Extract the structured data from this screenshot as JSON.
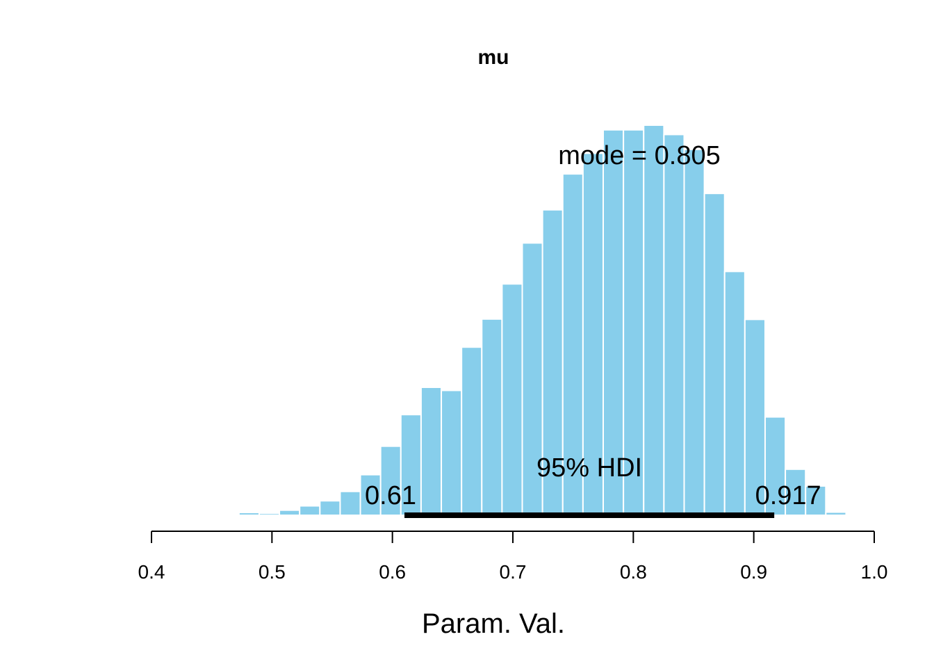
{
  "chart_data": {
    "type": "bar",
    "title": "mu",
    "xlabel": "Param. Val.",
    "ylabel": "",
    "xlim": [
      0.4,
      1.0
    ],
    "ylim": [
      0,
      1
    ],
    "grid": false,
    "bar_color": "#87CEEB",
    "bar_edge_color": "#ffffff",
    "hdi_color": "#000000",
    "bin_width": 0.0168,
    "bins": [
      {
        "x0": 0.4726,
        "x1": 0.4894,
        "value": 0.007
      },
      {
        "x0": 0.4894,
        "x1": 0.5062,
        "value": 0.005
      },
      {
        "x0": 0.5062,
        "x1": 0.523,
        "value": 0.013
      },
      {
        "x0": 0.523,
        "x1": 0.5398,
        "value": 0.024
      },
      {
        "x0": 0.5398,
        "x1": 0.5566,
        "value": 0.037
      },
      {
        "x0": 0.5566,
        "x1": 0.5734,
        "value": 0.061
      },
      {
        "x0": 0.5734,
        "x1": 0.5902,
        "value": 0.104
      },
      {
        "x0": 0.5902,
        "x1": 0.607,
        "value": 0.177
      },
      {
        "x0": 0.607,
        "x1": 0.6238,
        "value": 0.258
      },
      {
        "x0": 0.6238,
        "x1": 0.6406,
        "value": 0.328
      },
      {
        "x0": 0.6406,
        "x1": 0.6574,
        "value": 0.32
      },
      {
        "x0": 0.6574,
        "x1": 0.6742,
        "value": 0.431
      },
      {
        "x0": 0.6742,
        "x1": 0.691,
        "value": 0.503
      },
      {
        "x0": 0.691,
        "x1": 0.7078,
        "value": 0.593
      },
      {
        "x0": 0.7078,
        "x1": 0.7246,
        "value": 0.698
      },
      {
        "x0": 0.7246,
        "x1": 0.7414,
        "value": 0.783
      },
      {
        "x0": 0.7414,
        "x1": 0.7582,
        "value": 0.875
      },
      {
        "x0": 0.7582,
        "x1": 0.775,
        "value": 0.928
      },
      {
        "x0": 0.775,
        "x1": 0.7918,
        "value": 0.988
      },
      {
        "x0": 0.7918,
        "x1": 0.8086,
        "value": 0.988
      },
      {
        "x0": 0.8086,
        "x1": 0.8254,
        "value": 1.0
      },
      {
        "x0": 0.8254,
        "x1": 0.8422,
        "value": 0.976
      },
      {
        "x0": 0.8422,
        "x1": 0.859,
        "value": 0.938
      },
      {
        "x0": 0.859,
        "x1": 0.8758,
        "value": 0.825
      },
      {
        "x0": 0.8758,
        "x1": 0.8926,
        "value": 0.625
      },
      {
        "x0": 0.8926,
        "x1": 0.9094,
        "value": 0.502
      },
      {
        "x0": 0.9094,
        "x1": 0.9262,
        "value": 0.252
      },
      {
        "x0": 0.9262,
        "x1": 0.943,
        "value": 0.118
      },
      {
        "x0": 0.943,
        "x1": 0.9598,
        "value": 0.075
      },
      {
        "x0": 0.9598,
        "x1": 0.9766,
        "value": 0.008
      }
    ],
    "x_ticks": [
      0.4,
      0.5,
      0.6,
      0.7,
      0.8,
      0.9,
      1.0
    ],
    "x_tick_labels": [
      "0.4",
      "0.5",
      "0.6",
      "0.7",
      "0.8",
      "0.9",
      "1.0"
    ],
    "mode": 0.805,
    "mode_label": "mode = 0.805",
    "hdi": {
      "label": "95% HDI",
      "low": 0.61,
      "high": 0.917,
      "low_label": "0.61",
      "high_label": "0.917"
    }
  }
}
